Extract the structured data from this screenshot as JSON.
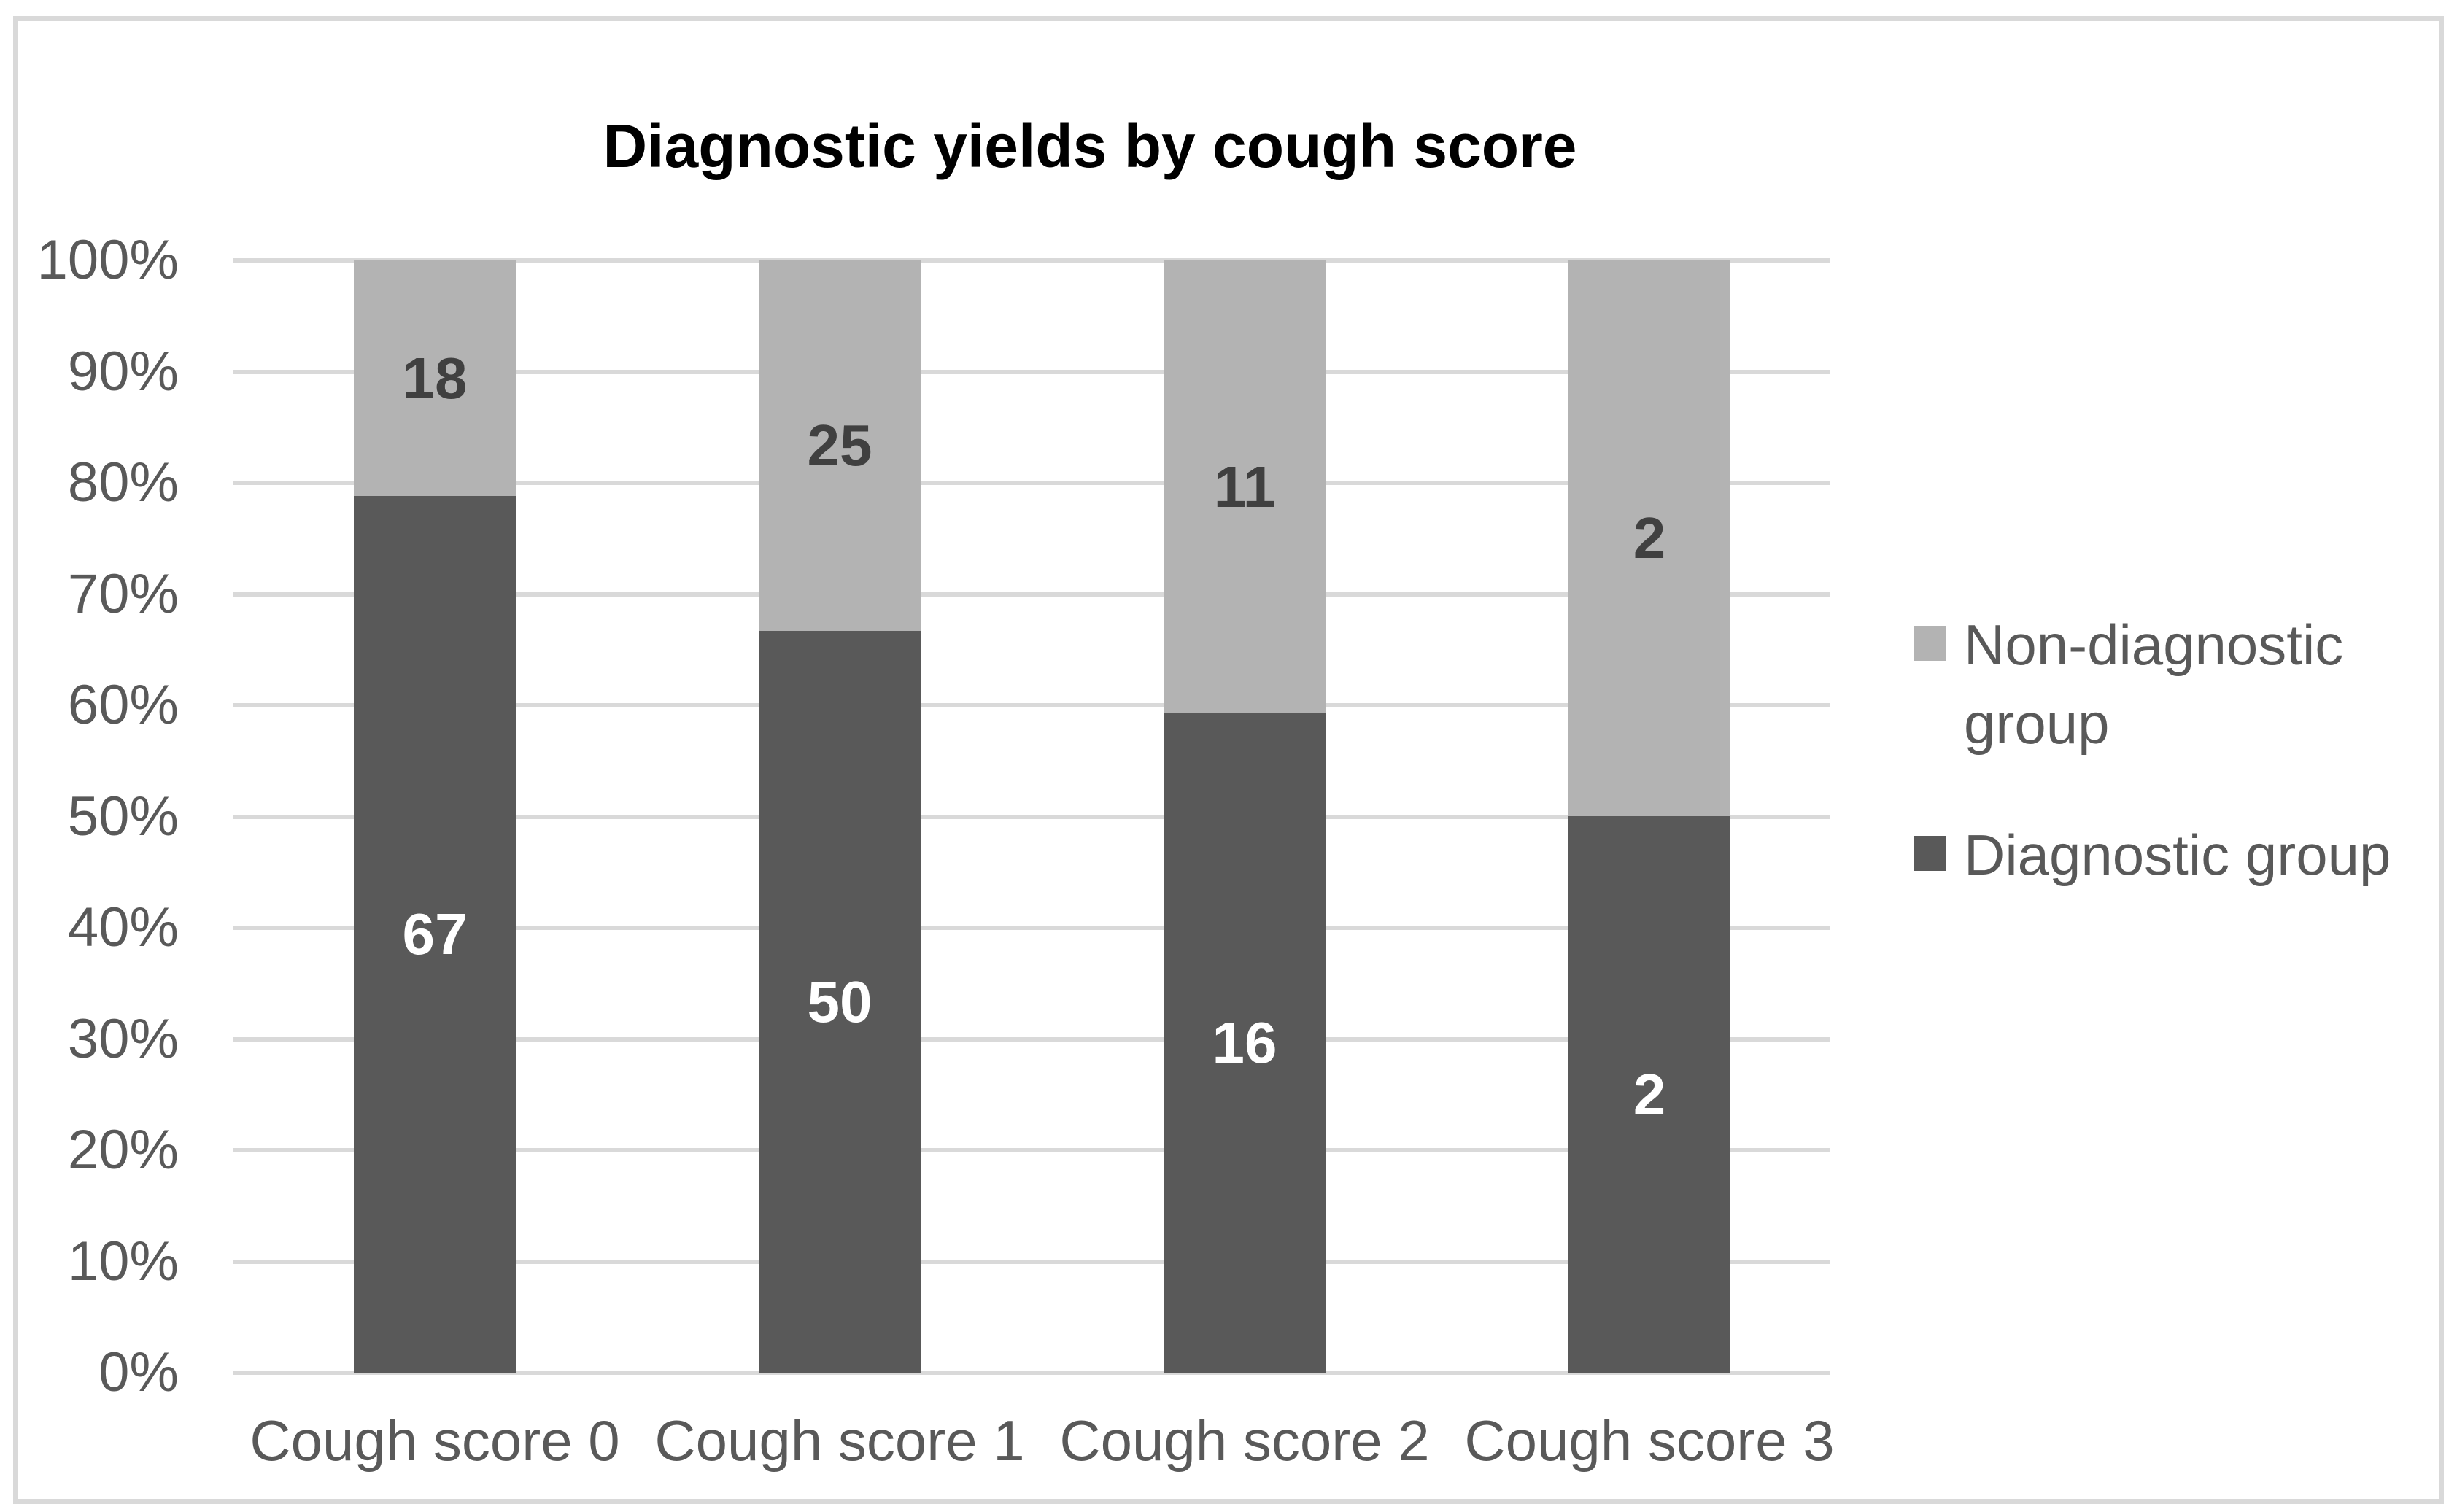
{
  "chart_data": {
    "type": "bar",
    "subtype": "stacked-column-100pct",
    "title": "Diagnostic yields by cough score",
    "categories": [
      "Cough score 0",
      "Cough score 1",
      "Cough score 2",
      "Cough score 3"
    ],
    "series": [
      {
        "name": "Diagnostic group",
        "color": "#595959",
        "label_color": "#ffffff",
        "values": [
          67,
          50,
          16,
          2
        ]
      },
      {
        "name": "Non-diagnostic group",
        "color": "#b3b3b3",
        "label_color": "#404040",
        "values": [
          18,
          25,
          11,
          2
        ]
      }
    ],
    "stack_order_bottom_to_top": [
      "Diagnostic group",
      "Non-diagnostic group"
    ],
    "y_axis": {
      "min": 0,
      "max": 100,
      "ticks": [
        "0%",
        "10%",
        "20%",
        "30%",
        "40%",
        "50%",
        "60%",
        "70%",
        "80%",
        "90%",
        "100%"
      ]
    },
    "grid": true,
    "legend_position": "right",
    "legend": [
      {
        "label": "Non-diagnostic group",
        "color": "#b3b3b3"
      },
      {
        "label": "Diagnostic group",
        "color": "#595959"
      }
    ]
  },
  "colors": {
    "background": "#ffffff",
    "border": "#d9d9d9",
    "gridline": "#d9d9d9",
    "axis_text": "#595959",
    "title_text": "#000000"
  }
}
